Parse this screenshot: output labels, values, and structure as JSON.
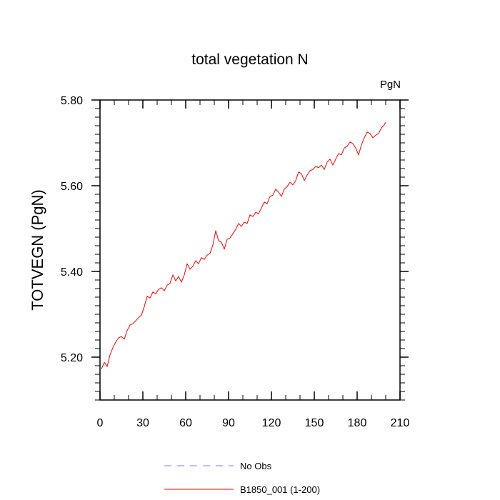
{
  "chart_data": {
    "type": "line",
    "title": "total vegetation N",
    "units": "PgN",
    "xlabel": "",
    "ylabel": "TOTVEGN  (PgN)",
    "xlim": [
      0,
      210
    ],
    "ylim": [
      5.1,
      5.8
    ],
    "x_ticks": [
      0,
      30,
      60,
      90,
      120,
      150,
      180,
      210
    ],
    "x_tick_labels": [
      "0",
      "30",
      "60",
      "90",
      "120",
      "150",
      "180",
      "210"
    ],
    "y_ticks": [
      5.2,
      5.4,
      5.6,
      5.8
    ],
    "y_tick_labels": [
      "5.20",
      "5.40",
      "5.60",
      "5.80"
    ],
    "y_minor_ticks": [
      5.1,
      5.12,
      5.14,
      5.16,
      5.18,
      5.22,
      5.24,
      5.26,
      5.28,
      5.3,
      5.32,
      5.34,
      5.36,
      5.38,
      5.42,
      5.44,
      5.46,
      5.48,
      5.5,
      5.52,
      5.54,
      5.56,
      5.58,
      5.62,
      5.64,
      5.66,
      5.68,
      5.7,
      5.72,
      5.74,
      5.76,
      5.78
    ],
    "x_minor_ticks": [
      10,
      20,
      40,
      50,
      70,
      80,
      100,
      110,
      130,
      140,
      160,
      170,
      190,
      200
    ],
    "grid": false,
    "legend_position": "bottom-center",
    "series": [
      {
        "name": "No Obs",
        "color": "#7b7bff",
        "dash": "dashed",
        "x": [],
        "y": []
      },
      {
        "name": "B1850_001 (1-200)",
        "color": "#ff0000",
        "dash": "solid",
        "x": [
          1,
          3,
          5,
          7,
          9,
          11,
          13,
          15,
          17,
          19,
          21,
          23,
          25,
          27,
          29,
          31,
          33,
          35,
          37,
          39,
          41,
          43,
          45,
          47,
          49,
          51,
          53,
          55,
          57,
          59,
          61,
          63,
          65,
          67,
          69,
          71,
          73,
          75,
          77,
          79,
          81,
          83,
          85,
          87,
          89,
          91,
          93,
          95,
          97,
          99,
          101,
          103,
          105,
          107,
          109,
          111,
          113,
          115,
          117,
          119,
          121,
          123,
          125,
          127,
          129,
          131,
          133,
          135,
          137,
          139,
          141,
          143,
          145,
          147,
          149,
          151,
          153,
          155,
          157,
          159,
          161,
          163,
          165,
          167,
          169,
          171,
          173,
          175,
          177,
          179,
          181,
          183,
          185,
          187,
          189,
          191,
          193,
          195,
          197,
          199,
          200
        ],
        "y": [
          5.172,
          5.188,
          5.178,
          5.205,
          5.222,
          5.235,
          5.245,
          5.248,
          5.242,
          5.262,
          5.275,
          5.278,
          5.285,
          5.292,
          5.298,
          5.318,
          5.342,
          5.338,
          5.352,
          5.348,
          5.358,
          5.362,
          5.355,
          5.368,
          5.372,
          5.392,
          5.378,
          5.388,
          5.375,
          5.392,
          5.418,
          5.405,
          5.412,
          5.425,
          5.418,
          5.432,
          5.428,
          5.438,
          5.442,
          5.462,
          5.495,
          5.472,
          5.468,
          5.452,
          5.475,
          5.478,
          5.488,
          5.498,
          5.512,
          5.505,
          5.515,
          5.512,
          5.532,
          5.528,
          5.538,
          5.535,
          5.548,
          5.562,
          5.558,
          5.575,
          5.578,
          5.592,
          5.585,
          5.575,
          5.592,
          5.598,
          5.608,
          5.602,
          5.612,
          5.632,
          5.628,
          5.612,
          5.625,
          5.635,
          5.638,
          5.645,
          5.642,
          5.648,
          5.638,
          5.655,
          5.662,
          5.648,
          5.662,
          5.675,
          5.672,
          5.688,
          5.692,
          5.702,
          5.698,
          5.688,
          5.672,
          5.695,
          5.712,
          5.725,
          5.722,
          5.712,
          5.718,
          5.722,
          5.735,
          5.742,
          5.748
        ]
      }
    ]
  }
}
